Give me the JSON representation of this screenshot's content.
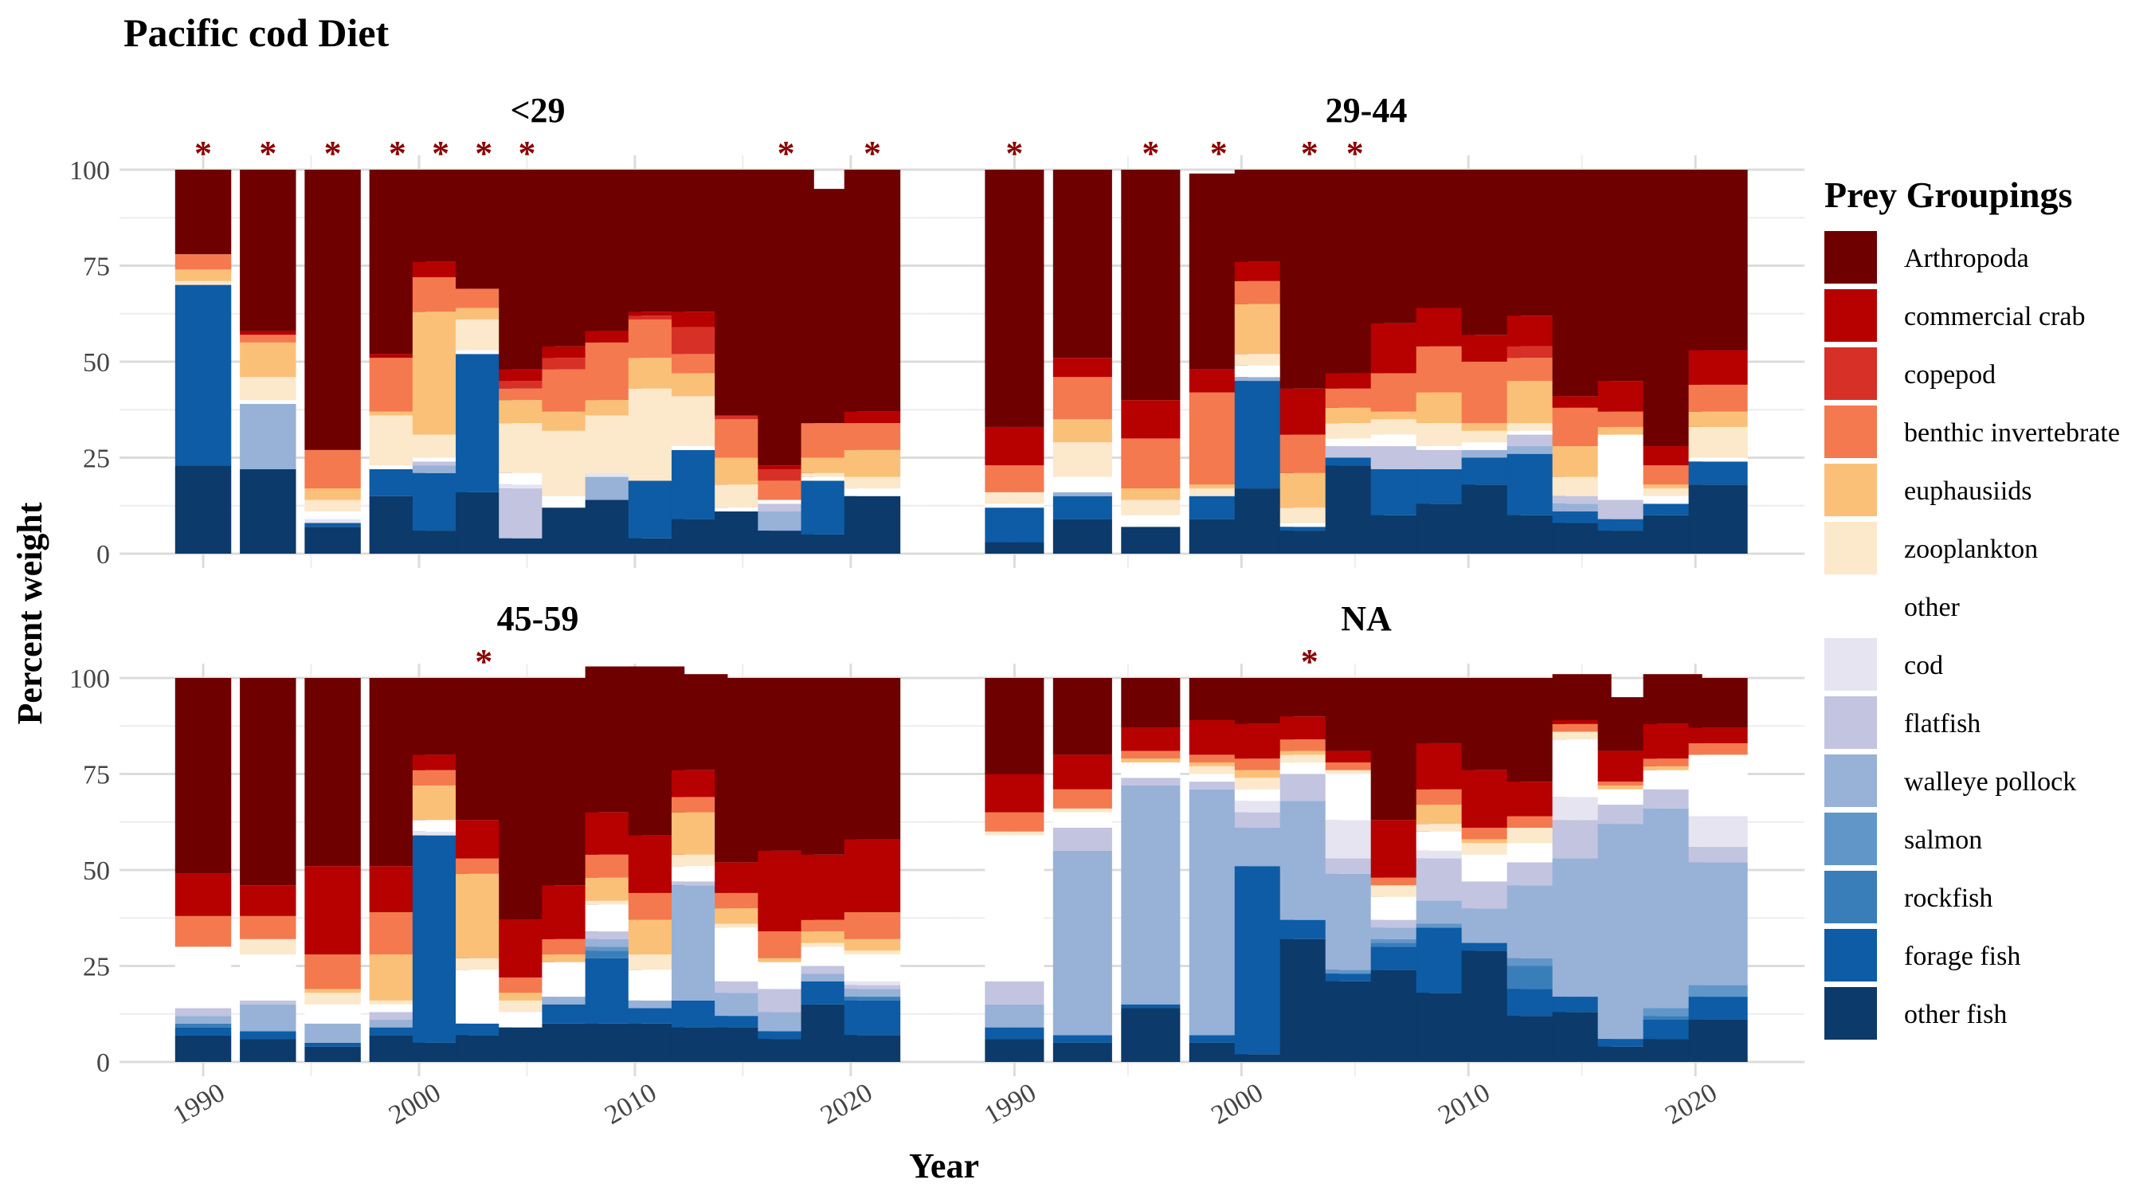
{
  "chart_data": {
    "type": "bar",
    "stacked": true,
    "title": "Pacific cod Diet",
    "xlabel": "Year",
    "ylabel": "Percent weight",
    "ylim": [
      0,
      100
    ],
    "y_ticks": [
      0,
      25,
      50,
      75,
      100
    ],
    "x_ticks": [
      1990,
      2000,
      2010,
      2020
    ],
    "xlim": [
      1987.6,
      2023.4
    ],
    "grid": true,
    "legend": {
      "title": "Prey Groupings",
      "position": "right",
      "order": [
        "Arthropoda",
        "commercial crab",
        "copepod",
        "benthic invertebrate",
        "euphausiids",
        "zooplankton",
        "other",
        "cod",
        "flatfish",
        "walleye pollock",
        "salmon",
        "rockfish",
        "forage fish",
        "other fish"
      ]
    },
    "stack_order": [
      "other fish",
      "forage fish",
      "rockfish",
      "salmon",
      "walleye pollock",
      "flatfish",
      "cod",
      "other",
      "zooplankton",
      "euphausiids",
      "benthic invertebrate",
      "copepod",
      "commercial crab",
      "Arthropoda"
    ],
    "colors": {
      "Arthropoda": "#6E0000",
      "commercial crab": "#B70000",
      "copepod": "#D73027",
      "benthic invertebrate": "#F4794F",
      "euphausiids": "#FAC078",
      "zooplankton": "#FCE8CB",
      "other": "#FFFFFF",
      "cod": "#E6E4F1",
      "flatfish": "#C2C4E0",
      "walleye pollock": "#98B1D7",
      "salmon": "#6196C8",
      "rockfish": "#3A7EB9",
      "forage fish": "#0D5CA5",
      "other fish": "#0B3A6B"
    },
    "panels": [
      {
        "label": "<29",
        "years": [
          1990,
          1993,
          1996,
          1999,
          2001,
          2003,
          2005,
          2007,
          2009,
          2011,
          2013,
          2015,
          2017,
          2019,
          2021
        ],
        "significant": [
          1990,
          1993,
          1996,
          1999,
          2001,
          2003,
          2005,
          2017,
          2021
        ],
        "series": {
          "other fish": [
            23,
            22,
            7,
            15,
            6,
            16,
            4,
            12,
            14,
            4,
            9,
            11,
            6,
            5,
            15
          ],
          "forage fish": [
            47,
            0,
            1,
            7,
            15,
            36,
            0,
            0,
            0,
            15,
            18,
            0,
            0,
            14,
            0
          ],
          "rockfish": [
            0,
            0,
            0,
            0,
            0,
            0,
            0,
            0,
            0,
            0,
            0,
            0,
            0,
            0,
            0
          ],
          "salmon": [
            0,
            0,
            0,
            0,
            0,
            0,
            0,
            0,
            0,
            0,
            0,
            0,
            0,
            0,
            0
          ],
          "walleye pollock": [
            0,
            17,
            0,
            0,
            2,
            0,
            0,
            0,
            6,
            0,
            0,
            0,
            5,
            0,
            0
          ],
          "flatfish": [
            0,
            0,
            0,
            0,
            1,
            0,
            13,
            0,
            0,
            0,
            0,
            0,
            2,
            0,
            0
          ],
          "cod": [
            0,
            0,
            1,
            0,
            0,
            0,
            1,
            0,
            1,
            0,
            0,
            0,
            0,
            0,
            0
          ],
          "other": [
            0,
            1,
            2,
            1,
            1,
            1,
            3,
            3,
            0,
            0,
            1,
            1,
            1,
            1,
            2
          ],
          "zooplankton": [
            1,
            6,
            3,
            13,
            6,
            8,
            13,
            17,
            15,
            24,
            13,
            6,
            0,
            1,
            3
          ],
          "euphausiids": [
            3,
            9,
            3,
            1,
            32,
            3,
            6,
            5,
            4,
            8,
            6,
            7,
            0,
            4,
            7
          ],
          "benthic invertebrate": [
            4,
            2,
            10,
            14,
            9,
            5,
            3,
            11,
            15,
            10,
            5,
            10,
            5,
            9,
            7
          ],
          "copepod": [
            0,
            0,
            0,
            0,
            0,
            0,
            2,
            3,
            0,
            1,
            7,
            1,
            3,
            0,
            0
          ],
          "commercial crab": [
            0,
            1,
            0,
            1,
            4,
            0,
            3,
            3,
            3,
            1,
            4,
            0,
            1,
            0,
            3
          ],
          "Arthropoda": [
            22,
            42,
            73,
            48,
            24,
            31,
            52,
            46,
            42,
            37,
            37,
            64,
            77,
            61,
            63
          ]
        }
      },
      {
        "label": "29-44",
        "years": [
          1990,
          1993,
          1996,
          1999,
          2001,
          2003,
          2005,
          2007,
          2009,
          2011,
          2013,
          2015,
          2017,
          2019,
          2021
        ],
        "significant": [
          1990,
          1996,
          1999,
          2003,
          2005
        ],
        "series": {
          "other fish": [
            3,
            9,
            7,
            9,
            17,
            6,
            23,
            10,
            13,
            18,
            10,
            8,
            6,
            10,
            18
          ],
          "forage fish": [
            9,
            6,
            0,
            6,
            28,
            1,
            2,
            12,
            9,
            7,
            16,
            3,
            3,
            3,
            6
          ],
          "rockfish": [
            0,
            0,
            0,
            0,
            0,
            0,
            0,
            0,
            0,
            0,
            0,
            0,
            0,
            0,
            0
          ],
          "salmon": [
            0,
            0,
            0,
            0,
            0,
            0,
            0,
            0,
            0,
            0,
            0,
            0,
            0,
            0,
            0
          ],
          "walleye pollock": [
            0,
            1,
            0,
            0,
            1,
            0,
            0,
            0,
            0,
            2,
            2,
            2,
            0,
            0,
            0
          ],
          "flatfish": [
            0,
            0,
            0,
            0,
            0,
            0,
            3,
            6,
            5,
            0,
            3,
            2,
            5,
            0,
            0
          ],
          "cod": [
            0,
            0,
            0,
            0,
            0,
            0,
            0,
            0,
            0,
            0,
            0,
            0,
            0,
            0,
            0
          ],
          "other": [
            1,
            4,
            3,
            0,
            3,
            1,
            2,
            3,
            1,
            2,
            1,
            0,
            17,
            2,
            1
          ],
          "zooplankton": [
            3,
            9,
            4,
            2,
            3,
            4,
            4,
            4,
            6,
            3,
            2,
            5,
            0,
            2,
            8
          ],
          "euphausiids": [
            0,
            6,
            3,
            1,
            13,
            9,
            4,
            2,
            8,
            2,
            11,
            8,
            2,
            1,
            4
          ],
          "benthic invertebrate": [
            7,
            11,
            13,
            24,
            6,
            10,
            5,
            10,
            12,
            16,
            6,
            10,
            4,
            5,
            7
          ],
          "copepod": [
            0,
            0,
            0,
            0,
            0,
            0,
            0,
            0,
            0,
            0,
            3,
            0,
            0,
            0,
            0
          ],
          "commercial crab": [
            10,
            5,
            10,
            6,
            5,
            12,
            4,
            13,
            10,
            7,
            8,
            3,
            8,
            5,
            9
          ],
          "Arthropoda": [
            67,
            49,
            60,
            51,
            24,
            57,
            53,
            40,
            36,
            43,
            38,
            59,
            55,
            72,
            47
          ]
        }
      },
      {
        "label": "45-59",
        "years": [
          1990,
          1993,
          1996,
          1999,
          2001,
          2003,
          2005,
          2007,
          2009,
          2011,
          2013,
          2015,
          2017,
          2019,
          2021
        ],
        "significant": [
          2003
        ],
        "series": {
          "other fish": [
            7,
            6,
            4,
            7,
            5,
            7,
            9,
            10,
            10,
            10,
            9,
            9,
            6,
            15,
            7
          ],
          "forage fish": [
            2,
            2,
            1,
            2,
            54,
            3,
            0,
            5,
            17,
            4,
            7,
            3,
            2,
            6,
            9
          ],
          "rockfish": [
            1,
            0,
            0,
            0,
            0,
            0,
            0,
            0,
            2,
            0,
            0,
            0,
            0,
            0,
            1
          ],
          "salmon": [
            0,
            0,
            0,
            0,
            0,
            0,
            0,
            0,
            1,
            0,
            0,
            0,
            0,
            0,
            0
          ],
          "walleye pollock": [
            2,
            7,
            5,
            2,
            0,
            0,
            0,
            2,
            2,
            2,
            30,
            6,
            5,
            2,
            2
          ],
          "flatfish": [
            2,
            1,
            0,
            2,
            0,
            0,
            0,
            0,
            2,
            0,
            1,
            3,
            6,
            2,
            1
          ],
          "cod": [
            0,
            0,
            0,
            0,
            1,
            0,
            0,
            0,
            0,
            0,
            0,
            0,
            0,
            0,
            1
          ],
          "other": [
            16,
            12,
            5,
            2,
            3,
            14,
            4,
            9,
            7,
            8,
            4,
            14,
            7,
            5,
            7
          ],
          "zooplankton": [
            0,
            4,
            3,
            1,
            0,
            3,
            3,
            0,
            1,
            4,
            3,
            1,
            0,
            1,
            1
          ],
          "euphausiids": [
            0,
            0,
            1,
            12,
            9,
            22,
            2,
            2,
            6,
            9,
            11,
            4,
            1,
            3,
            3
          ],
          "benthic invertebrate": [
            8,
            6,
            9,
            11,
            4,
            4,
            4,
            4,
            6,
            7,
            4,
            4,
            7,
            3,
            7
          ],
          "copepod": [
            0,
            0,
            0,
            0,
            0,
            0,
            0,
            0,
            0,
            0,
            0,
            0,
            0,
            0,
            0
          ],
          "commercial crab": [
            11,
            8,
            23,
            12,
            4,
            10,
            15,
            14,
            11,
            15,
            7,
            8,
            21,
            17,
            19
          ],
          "Arthropoda": [
            51,
            54,
            49,
            49,
            20,
            37,
            63,
            54,
            38,
            44,
            25,
            48,
            45,
            46,
            42
          ]
        }
      },
      {
        "label": "NA",
        "years": [
          1990,
          1993,
          1996,
          1999,
          2001,
          2003,
          2005,
          2007,
          2009,
          2011,
          2013,
          2015,
          2017,
          2019,
          2021
        ],
        "significant": [
          2003
        ],
        "series": {
          "other fish": [
            6,
            5,
            14,
            5,
            2,
            32,
            21,
            24,
            18,
            29,
            12,
            13,
            4,
            6,
            11
          ],
          "forage fish": [
            3,
            2,
            1,
            2,
            49,
            5,
            2,
            6,
            17,
            2,
            7,
            4,
            2,
            5,
            6
          ],
          "rockfish": [
            0,
            0,
            0,
            0,
            0,
            0,
            0,
            1,
            0,
            0,
            6,
            0,
            0,
            1,
            0
          ],
          "salmon": [
            0,
            0,
            0,
            0,
            0,
            0,
            1,
            1,
            1,
            0,
            2,
            0,
            0,
            2,
            3
          ],
          "walleye pollock": [
            6,
            48,
            57,
            64,
            10,
            31,
            25,
            3,
            6,
            9,
            19,
            36,
            56,
            52,
            32
          ],
          "flatfish": [
            6,
            6,
            2,
            2,
            4,
            7,
            4,
            2,
            11,
            7,
            6,
            10,
            5,
            5,
            4
          ],
          "cod": [
            0,
            0,
            0,
            0,
            3,
            0,
            10,
            0,
            2,
            0,
            0,
            6,
            0,
            0,
            8
          ],
          "other": [
            38,
            4,
            4,
            2,
            3,
            3,
            12,
            6,
            5,
            7,
            5,
            15,
            4,
            5,
            16
          ],
          "zooplankton": [
            1,
            1,
            0,
            2,
            3,
            2,
            1,
            3,
            2,
            3,
            4,
            2,
            0,
            0,
            0
          ],
          "euphausiids": [
            0,
            0,
            1,
            1,
            2,
            1,
            0,
            0,
            5,
            1,
            0,
            0,
            1,
            1,
            0
          ],
          "benthic invertebrate": [
            5,
            5,
            2,
            2,
            3,
            3,
            2,
            2,
            4,
            3,
            3,
            2,
            1,
            2,
            3
          ],
          "copepod": [
            0,
            0,
            0,
            0,
            0,
            0,
            0,
            0,
            0,
            0,
            0,
            0,
            0,
            0,
            0
          ],
          "commercial crab": [
            10,
            9,
            6,
            9,
            9,
            6,
            3,
            15,
            12,
            15,
            9,
            1,
            8,
            9,
            4
          ],
          "Arthropoda": [
            25,
            20,
            13,
            11,
            12,
            10,
            19,
            37,
            17,
            24,
            27,
            12,
            14,
            13,
            13
          ]
        }
      }
    ]
  }
}
